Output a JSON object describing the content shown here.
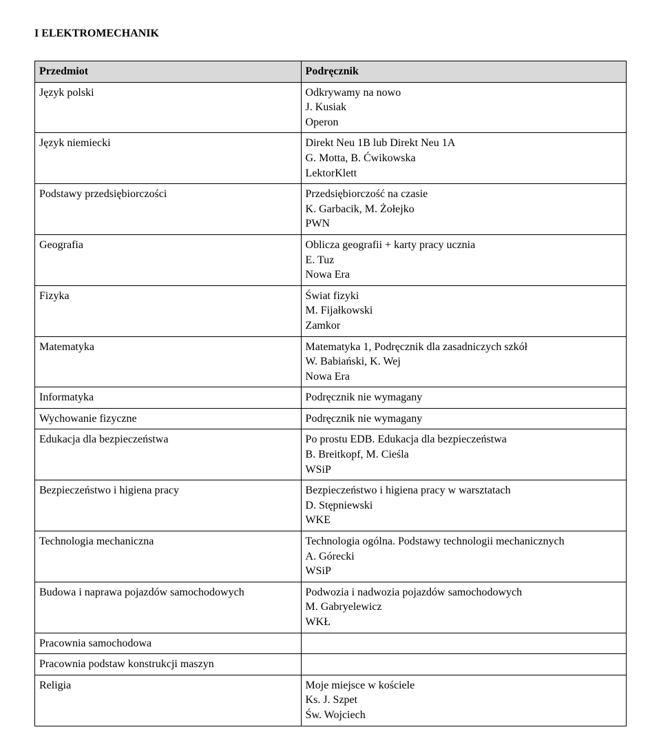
{
  "title": "I ELEKTROMECHANIK",
  "columns": [
    "Przedmiot",
    "Podręcznik"
  ],
  "rows": [
    {
      "subject": "Język polski",
      "text_lines": [
        "Odkrywamy na nowo",
        "J. Kusiak",
        "Operon"
      ]
    },
    {
      "subject": "Język niemiecki",
      "text_lines": [
        "Direkt Neu 1B lub Direkt Neu 1A",
        "G. Motta, B. Ćwikowska",
        "LektorKlett"
      ]
    },
    {
      "subject": "Podstawy przedsiębiorczości",
      "text_lines": [
        "Przedsiębiorczość na czasie",
        "K. Garbacik, M. Żołejko",
        "PWN"
      ]
    },
    {
      "subject": "Geografia",
      "text_lines": [
        "Oblicza geografii + karty pracy ucznia",
        "E. Tuz",
        "Nowa Era"
      ]
    },
    {
      "subject": "Fizyka",
      "text_lines": [
        "Świat fizyki",
        "M. Fijałkowski",
        "Zamkor"
      ]
    },
    {
      "subject": "Matematyka",
      "text_lines": [
        "Matematyka 1, Podręcznik dla zasadniczych szkół",
        "W. Babiański, K. Wej",
        "Nowa Era"
      ]
    },
    {
      "subject": "Informatyka",
      "text_lines": [
        "Podręcznik nie wymagany"
      ]
    },
    {
      "subject": "Wychowanie fizyczne",
      "text_lines": [
        "Podręcznik nie wymagany"
      ]
    },
    {
      "subject": "Edukacja dla bezpieczeństwa",
      "text_lines": [
        "Po prostu EDB. Edukacja dla bezpieczeństwa",
        "B. Breitkopf, M. Cieśla",
        "WSiP"
      ]
    },
    {
      "subject": "Bezpieczeństwo i higiena pracy",
      "text_lines": [
        "Bezpieczeństwo i higiena pracy w warsztatach",
        "D. Stępniewski",
        "WKE"
      ]
    },
    {
      "subject": "Technologia mechaniczna",
      "text_lines": [
        "Technologia ogólna. Podstawy technologii mechanicznych",
        "A. Górecki",
        "WSiP"
      ]
    },
    {
      "subject": "Budowa i naprawa pojazdów samochodowych",
      "text_lines": [
        "Podwozia i nadwozia pojazdów samochodowych",
        "M. Gabryelewicz",
        "WKŁ"
      ]
    },
    {
      "subject": "Pracownia samochodowa",
      "text_lines": []
    },
    {
      "subject": "Pracownia podstaw konstrukcji maszyn",
      "text_lines": []
    },
    {
      "subject": "Religia",
      "text_lines": [
        "Moje miejsce w kościele",
        "Ks. J. Szpet",
        "Św. Wojciech"
      ]
    }
  ]
}
